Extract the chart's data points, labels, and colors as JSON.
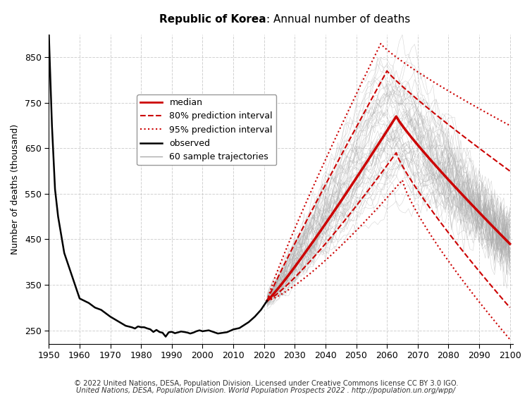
{
  "title_bold": "Republic of Korea",
  "title_normal": ": Annual number of deaths",
  "ylabel": "Number of deaths (thousand)",
  "xlim": [
    1950,
    2101
  ],
  "ylim": [
    220,
    900
  ],
  "yticks": [
    250,
    350,
    450,
    550,
    650,
    750,
    850
  ],
  "xticks": [
    1950,
    1960,
    1970,
    1980,
    1990,
    2000,
    2010,
    2020,
    2030,
    2040,
    2050,
    2060,
    2070,
    2080,
    2090,
    2100
  ],
  "background_color": "#ffffff",
  "grid_color": "#cccccc",
  "observed_color": "#000000",
  "median_color": "#cc0000",
  "pi80_color": "#cc0000",
  "pi95_color": "#cc0000",
  "sample_color": "#aaaaaa",
  "footnote1": "© 2022 United Nations, DESA, Population Division. Licensed under Creative Commons license CC BY 3.0 IGO.",
  "footnote2": "United Nations, DESA, Population Division. World Population Prospects 2022 . http://population.un.org/wpp/",
  "legend_labels": [
    "median",
    "80% prediction interval",
    "95% prediction interval",
    "observed",
    "60 sample trajectories"
  ],
  "n_samples": 60
}
